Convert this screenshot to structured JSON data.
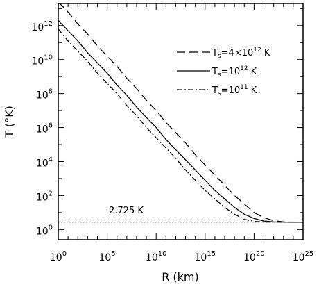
{
  "chart_data": {
    "type": "line",
    "xlabel": "R (km)",
    "ylabel": "T (°K)",
    "x_scale": "log",
    "y_scale": "log",
    "xlim_log10": [
      0,
      25
    ],
    "ylim_log10": [
      -0.6,
      13.3
    ],
    "x_ticks": [
      {
        "base": "10",
        "exp": "0",
        "log10": 0
      },
      {
        "base": "10",
        "exp": "5",
        "log10": 5
      },
      {
        "base": "10",
        "exp": "10",
        "log10": 10
      },
      {
        "base": "10",
        "exp": "15",
        "log10": 15
      },
      {
        "base": "10",
        "exp": "20",
        "log10": 20
      },
      {
        "base": "10",
        "exp": "25",
        "log10": 25
      }
    ],
    "y_ticks": [
      {
        "base": "10",
        "exp": "0",
        "log10": 0
      },
      {
        "base": "10",
        "exp": "2",
        "log10": 2
      },
      {
        "base": "10",
        "exp": "4",
        "log10": 4
      },
      {
        "base": "10",
        "exp": "6",
        "log10": 6
      },
      {
        "base": "10",
        "exp": "8",
        "log10": 8
      },
      {
        "base": "10",
        "exp": "10",
        "log10": 10
      },
      {
        "base": "10",
        "exp": "12",
        "log10": 12
      }
    ],
    "grid": false,
    "legend_position": "top-right",
    "reference_line": {
      "label": "2.725 K",
      "value": 2.725,
      "style": "dotted"
    },
    "series": [
      {
        "name_prefix": "T",
        "name_sub": "s",
        "name_main": "=4×10",
        "name_sup": "12",
        "name_suffix": " K",
        "style": "dashed",
        "log10_x": [
          0,
          1,
          2,
          3,
          4,
          5,
          6,
          7,
          8,
          9,
          10,
          11,
          12,
          13,
          14,
          15,
          16,
          17,
          18,
          19,
          20,
          21,
          22,
          23,
          24,
          25
        ],
        "log10_y": [
          13.4,
          12.8,
          12.1,
          11.5,
          10.8,
          10.2,
          9.6,
          8.9,
          8.3,
          7.6,
          7.0,
          6.3,
          5.7,
          5.1,
          4.4,
          3.8,
          3.2,
          2.6,
          2.0,
          1.5,
          1.0,
          0.7,
          0.52,
          0.45,
          0.44,
          0.435
        ]
      },
      {
        "name_prefix": "T",
        "name_sub": "s",
        "name_main": "=10",
        "name_sup": "12",
        "name_suffix": " K",
        "style": "solid",
        "log10_x": [
          0,
          1,
          2,
          3,
          4,
          5,
          6,
          7,
          8,
          9,
          10,
          11,
          12,
          13,
          14,
          15,
          16,
          17,
          18,
          19,
          20,
          21,
          22,
          23,
          24,
          25
        ],
        "log10_y": [
          12.3,
          11.7,
          11.1,
          10.4,
          9.8,
          9.2,
          8.5,
          7.9,
          7.2,
          6.6,
          6.0,
          5.3,
          4.7,
          4.1,
          3.5,
          2.9,
          2.3,
          1.8,
          1.3,
          0.9,
          0.65,
          0.5,
          0.45,
          0.44,
          0.435,
          0.435
        ]
      },
      {
        "name_prefix": "T",
        "name_sub": "s",
        "name_main": "=10",
        "name_sup": "11",
        "name_suffix": " K",
        "style": "dashdot",
        "log10_x": [
          0,
          1,
          2,
          3,
          4,
          5,
          6,
          7,
          8,
          9,
          10,
          11,
          12,
          13,
          14,
          15,
          16,
          17,
          18,
          19,
          20,
          21,
          22,
          23,
          24,
          25
        ],
        "log10_y": [
          11.8,
          11.1,
          10.5,
          9.9,
          9.2,
          8.6,
          8.0,
          7.3,
          6.7,
          6.0,
          5.4,
          4.8,
          4.2,
          3.5,
          2.9,
          2.3,
          1.8,
          1.3,
          0.9,
          0.6,
          0.48,
          0.44,
          0.437,
          0.436,
          0.435,
          0.435
        ]
      }
    ]
  }
}
